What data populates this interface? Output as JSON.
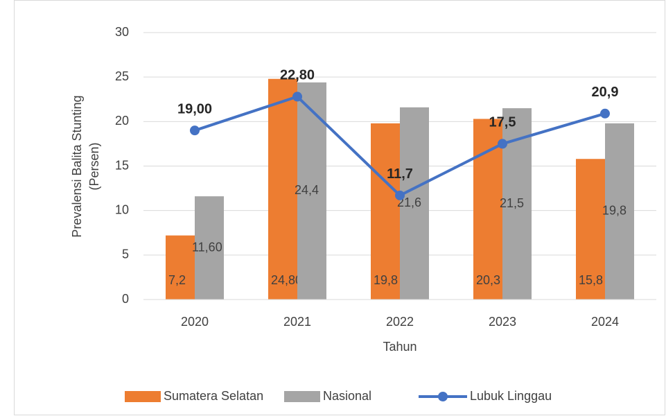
{
  "chart_data": {
    "type": "bar-line",
    "categories": [
      "2020",
      "2021",
      "2022",
      "2023",
      "2024"
    ],
    "series": [
      {
        "name": "Sumatera Selatan",
        "type": "bar",
        "color": "#ed7d31",
        "values": [
          7.2,
          24.8,
          19.8,
          20.3,
          15.8
        ],
        "value_labels": [
          "7,2",
          "24,80",
          "19,8",
          "20,3",
          "15,8"
        ]
      },
      {
        "name": "Nasional",
        "type": "bar",
        "color": "#a5a5a5",
        "values": [
          11.6,
          24.4,
          21.6,
          21.5,
          19.8
        ],
        "value_labels": [
          "11,60",
          "24,4",
          "21,6",
          "21,5",
          "19,8"
        ]
      },
      {
        "name": "Lubuk Linggau",
        "type": "line",
        "color": "#4472c4",
        "values": [
          19.0,
          22.8,
          11.7,
          17.5,
          20.9
        ],
        "value_labels": [
          "19,00",
          "22,80",
          "11,7",
          "17,5",
          "20,9"
        ]
      }
    ],
    "x_label": "Tahun",
    "y_label": [
      "Prevalensi Balita Stunting",
      "(Persen)"
    ],
    "ylim": [
      0,
      30
    ],
    "yticks": [
      0,
      5,
      10,
      15,
      20,
      25,
      30
    ],
    "grid": true,
    "legend": "bottom"
  }
}
